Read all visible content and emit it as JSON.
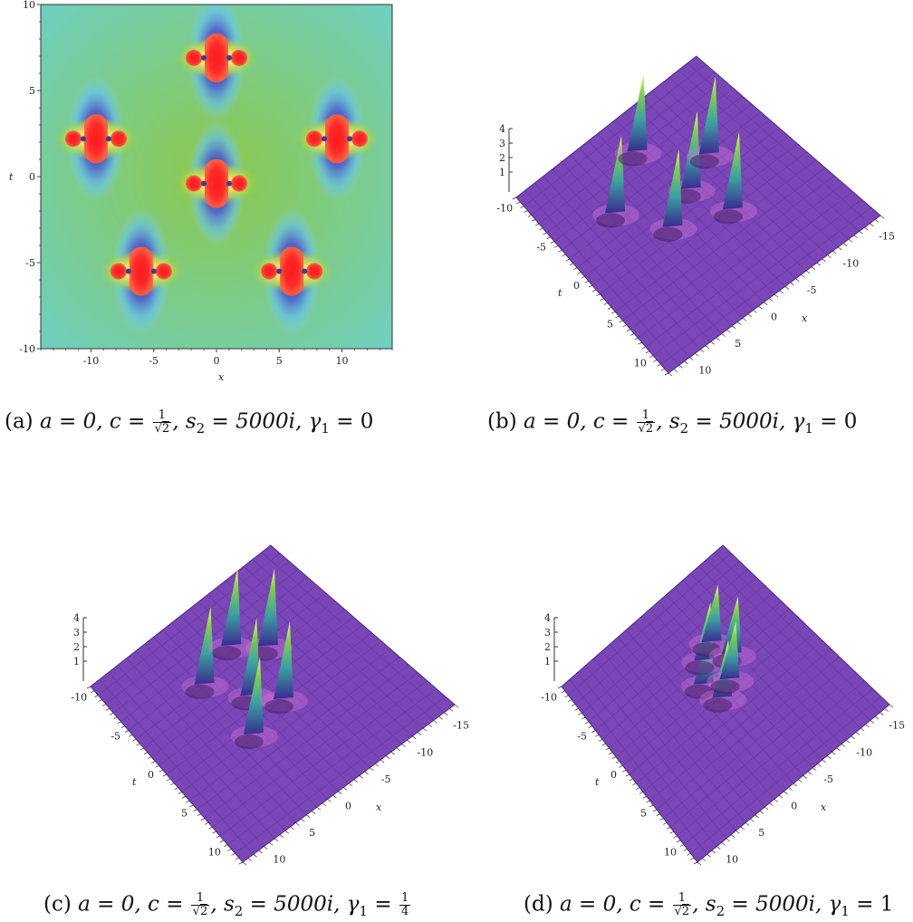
{
  "panel_a": {
    "label": "(a)",
    "axis_x_label": "x",
    "axis_y_label": "t",
    "x_ticks": [
      "-10",
      "-5",
      "0",
      "5",
      "10"
    ],
    "y_ticks": [
      "10",
      "5",
      "0",
      "-5",
      "-10"
    ],
    "peaks": [
      [
        0,
        6.9
      ],
      [
        -9.6,
        2.2
      ],
      [
        9.6,
        2.2
      ],
      [
        0,
        -0.4
      ],
      [
        -6,
        -5.5
      ],
      [
        6,
        -5.5
      ]
    ]
  },
  "panels_3d": [
    {
      "label": "(b)",
      "t_axis": "t",
      "x_axis": "x",
      "z_ticks": [
        "4",
        "3",
        "2",
        "1"
      ],
      "t_ticks": [
        "-10",
        "-5",
        "0",
        "5",
        "10"
      ],
      "x_ticks": [
        "-15",
        "-10",
        "-5",
        "0",
        "5",
        "10"
      ]
    },
    {
      "label": "(c)",
      "t_axis": "t",
      "x_axis": "x",
      "z_ticks": [
        "4",
        "3",
        "2",
        "1"
      ],
      "t_ticks": [
        "-10",
        "-5",
        "0",
        "5",
        "10"
      ],
      "x_ticks": [
        "-15",
        "-10",
        "-5",
        "0",
        "5",
        "10"
      ]
    },
    {
      "label": "(d)",
      "t_axis": "t",
      "x_axis": "x",
      "z_ticks": [
        "4",
        "3",
        "2",
        "1"
      ],
      "t_ticks": [
        "-10",
        "-5",
        "0",
        "5",
        "10"
      ],
      "x_ticks": [
        "-15",
        "-10",
        "-5",
        "0",
        "5",
        "10"
      ]
    }
  ],
  "captions": {
    "a": {
      "label": "(a)",
      "a_eq": "a = 0, c = ",
      "num": "1",
      "den": "2",
      "rest_s": ", s",
      "s_sub": "2",
      "s_eq": " = 5000i, γ",
      "g_sub": "1",
      "g_eq": " = 0"
    },
    "b": {
      "label": "(b)",
      "a_eq": "a = 0, c = ",
      "num": "1",
      "den": "2",
      "rest_s": ", s",
      "s_sub": "2",
      "s_eq": " = 5000i, γ",
      "g_sub": "1",
      "g_eq": " = 0"
    },
    "c": {
      "label": "(c)",
      "a_eq": "a = 0, c = ",
      "num": "1",
      "den": "2",
      "rest_s": ", s",
      "s_sub": "2",
      "s_eq": " = 5000i, γ",
      "g_sub": "1",
      "g_eq": " = ",
      "g_num": "1",
      "g_den": "4"
    },
    "d": {
      "label": "(d)",
      "a_eq": "a = 0, c = ",
      "num": "1",
      "den": "2",
      "rest_s": ", s",
      "s_sub": "2",
      "s_eq": " = 5000i, γ",
      "g_sub": "1",
      "g_eq": " = 1"
    }
  },
  "colors": {
    "surface": "#7a46b8",
    "grid": "#5d3493",
    "peak_top": "#7fd24a",
    "hot": "#ff2d2d"
  }
}
